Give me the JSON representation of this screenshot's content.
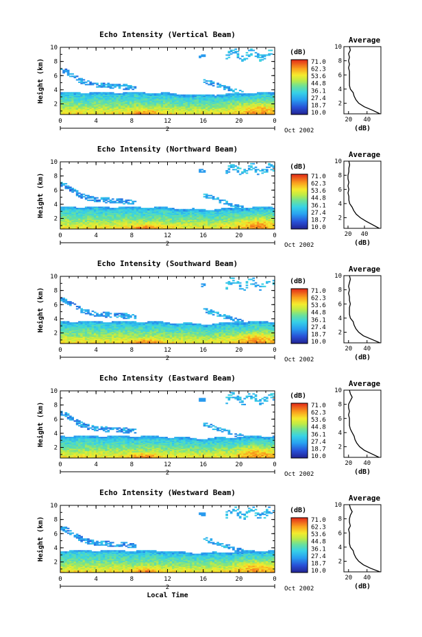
{
  "chart_data": [
    {
      "type": "heatmap",
      "title": "Echo Intensity (Vertical Beam)",
      "ylabel": "Height (km)",
      "xticks": [
        "0",
        "4",
        "8",
        "12",
        "16",
        "20",
        "0"
      ],
      "yticks": [
        "2",
        "4",
        "6",
        "8",
        "10"
      ],
      "xlim": [
        0,
        24
      ],
      "ylim": [
        0.5,
        10
      ],
      "date_label": "2",
      "month_label": "Oct 2002",
      "colorbar": {
        "unit": "(dB)",
        "ticks": [
          "71.0",
          "62.3",
          "53.6",
          "44.8",
          "36.1",
          "27.4",
          "18.7",
          "10.0"
        ]
      },
      "profile": {
        "title": "Average",
        "xlabel": "(dB)",
        "xticks": [
          "20",
          "40"
        ],
        "xlim": [
          15,
          55
        ],
        "heights": [
          0.5,
          1,
          1.5,
          2,
          2.5,
          3,
          3.5,
          4,
          4.5,
          5,
          5.5,
          6,
          6.5,
          7,
          7.5,
          8,
          8.5,
          9,
          9.5,
          10
        ],
        "values": [
          54,
          46,
          37,
          31,
          28,
          26,
          25,
          22,
          21,
          21,
          21,
          21,
          21,
          20,
          21,
          20,
          21,
          20,
          22,
          21
        ]
      }
    },
    {
      "type": "heatmap",
      "title": "Echo Intensity (Northward Beam)",
      "ylabel": "Height (km)",
      "xticks": [
        "0",
        "4",
        "8",
        "12",
        "16",
        "20",
        "0"
      ],
      "yticks": [
        "2",
        "4",
        "6",
        "8",
        "10"
      ],
      "xlim": [
        0,
        24
      ],
      "ylim": [
        0.5,
        10
      ],
      "date_label": "2",
      "month_label": "Oct 2002",
      "colorbar": {
        "unit": "(dB)",
        "ticks": [
          "71.0",
          "62.3",
          "53.6",
          "44.8",
          "36.1",
          "27.4",
          "18.7",
          "10.0"
        ]
      },
      "profile": {
        "title": "Average",
        "xlabel": "(dB)",
        "xticks": [
          "20",
          "40"
        ],
        "xlim": [
          15,
          60
        ],
        "heights": [
          0.5,
          1,
          1.5,
          2,
          2.5,
          3,
          3.5,
          4,
          4.5,
          5,
          5.5,
          6,
          6.5,
          7,
          7.5,
          8,
          8.5,
          9,
          9.5,
          10
        ],
        "values": [
          58,
          50,
          42,
          35,
          30,
          27,
          25,
          22,
          21,
          21,
          20,
          21,
          20,
          21,
          20,
          20,
          21,
          21,
          22,
          21
        ]
      }
    },
    {
      "type": "heatmap",
      "title": "Echo Intensity (Southward Beam)",
      "ylabel": "Height (km)",
      "xticks": [
        "0",
        "4",
        "8",
        "12",
        "16",
        "20",
        "0"
      ],
      "yticks": [
        "2",
        "4",
        "6",
        "8",
        "10"
      ],
      "xlim": [
        0,
        24
      ],
      "ylim": [
        0.5,
        10
      ],
      "date_label": "2",
      "month_label": "Oct 2002",
      "colorbar": {
        "unit": "(dB)",
        "ticks": [
          "71.0",
          "62.3",
          "53.6",
          "44.8",
          "36.1",
          "27.4",
          "18.7",
          "10.0"
        ]
      },
      "profile": {
        "title": "Average",
        "xlabel": "(dB)",
        "xticks": [
          "20",
          "40"
        ],
        "xlim": [
          15,
          55
        ],
        "heights": [
          0.5,
          1,
          1.5,
          2,
          2.5,
          3,
          3.5,
          4,
          4.5,
          5,
          5.5,
          6,
          6.5,
          7,
          7.5,
          8,
          8.5,
          9,
          9.5,
          10
        ],
        "values": [
          54,
          45,
          36,
          31,
          28,
          26,
          25,
          22,
          21,
          21,
          21,
          22,
          21,
          21,
          20,
          21,
          20,
          21,
          22,
          21
        ]
      }
    },
    {
      "type": "heatmap",
      "title": "Echo Intensity (Eastward Beam)",
      "ylabel": "Height (km)",
      "xticks": [
        "0",
        "4",
        "8",
        "12",
        "16",
        "20",
        "0"
      ],
      "yticks": [
        "2",
        "4",
        "6",
        "8",
        "10"
      ],
      "xlim": [
        0,
        24
      ],
      "ylim": [
        0.5,
        10
      ],
      "date_label": "2",
      "month_label": "Oct 2002",
      "colorbar": {
        "unit": "(dB)",
        "ticks": [
          "71.0",
          "62.3",
          "53.6",
          "44.8",
          "36.1",
          "27.4",
          "18.7",
          "10.0"
        ]
      },
      "profile": {
        "title": "Average",
        "xlabel": "(dB)",
        "xticks": [
          "20",
          "40"
        ],
        "xlim": [
          15,
          55
        ],
        "heights": [
          0.5,
          1,
          1.5,
          2,
          2.5,
          3,
          3.5,
          4,
          4.5,
          5,
          5.5,
          6,
          6.5,
          7,
          7.5,
          8,
          8.5,
          9,
          9.5,
          10
        ],
        "values": [
          53,
          45,
          37,
          32,
          29,
          27,
          26,
          24,
          22,
          21,
          21,
          21,
          20,
          21,
          20,
          20,
          22,
          24,
          22,
          21
        ]
      }
    },
    {
      "type": "heatmap",
      "title": "Echo Intensity (Westward Beam)",
      "ylabel": "Height (km)",
      "xlabel": "Local Time",
      "xticks": [
        "0",
        "4",
        "8",
        "12",
        "16",
        "20",
        "0"
      ],
      "yticks": [
        "2",
        "4",
        "6",
        "8",
        "10"
      ],
      "xlim": [
        0,
        24
      ],
      "ylim": [
        0.5,
        10
      ],
      "date_label": "2",
      "month_label": "Oct 2002",
      "colorbar": {
        "unit": "(dB)",
        "ticks": [
          "71.0",
          "62.3",
          "53.6",
          "44.8",
          "36.1",
          "27.4",
          "18.7",
          "10.0"
        ]
      },
      "profile": {
        "title": "Average",
        "xlabel": "(dB)",
        "xticks": [
          "20",
          "40"
        ],
        "xlim": [
          15,
          55
        ],
        "heights": [
          0.5,
          1,
          1.5,
          2,
          2.5,
          3,
          3.5,
          4,
          4.5,
          5,
          5.5,
          6,
          6.5,
          7,
          7.5,
          8,
          8.5,
          9,
          9.5,
          10
        ],
        "values": [
          54,
          44,
          36,
          31,
          28,
          26,
          25,
          22,
          21,
          21,
          21,
          21,
          20,
          22,
          21,
          21,
          22,
          24,
          22,
          21
        ]
      }
    }
  ]
}
